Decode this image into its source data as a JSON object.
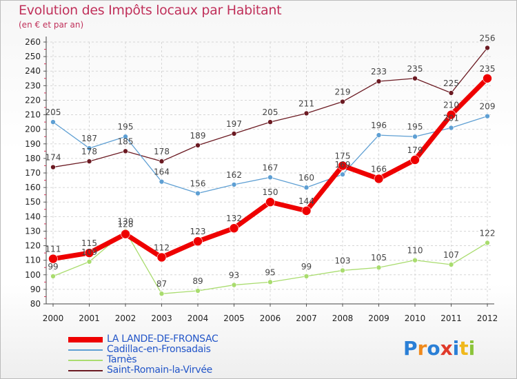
{
  "title": "Evolution des Impôts locaux par Habitant",
  "subtitle": "(en € et par an)",
  "brand": {
    "letters": [
      "P",
      "r",
      "o",
      "x",
      "i",
      "t",
      "i"
    ],
    "colors": [
      "#2a7fd6",
      "#f08a1c",
      "#2a7fd6",
      "#e03a2a",
      "#2a7fd6",
      "#f0b81c",
      "#8bc43a"
    ]
  },
  "chart_data": {
    "type": "line",
    "title": "Evolution des Impôts locaux par Habitant",
    "subtitle": "(en € et par an)",
    "xlabel": "",
    "ylabel": "",
    "x": [
      "2000",
      "2001",
      "2002",
      "2003",
      "2004",
      "2005",
      "2006",
      "2007",
      "2008",
      "2009",
      "2010",
      "2011",
      "2012"
    ],
    "ylim": [
      80,
      260
    ],
    "yticks": [
      80,
      90,
      100,
      110,
      120,
      130,
      140,
      150,
      160,
      170,
      180,
      190,
      200,
      210,
      220,
      230,
      240,
      250,
      260
    ],
    "grid": true,
    "legend_position": "bottom-left",
    "series": [
      {
        "name": "Saint-Romain-la-Virvée",
        "color": "#6b1a22",
        "width": 1.3,
        "marker": 3.5,
        "values": [
          174,
          178,
          185,
          178,
          189,
          197,
          205,
          211,
          219,
          233,
          235,
          225,
          256
        ]
      },
      {
        "name": "Cadillac-en-Fronsadais",
        "color": "#5e9fd3",
        "width": 1.3,
        "marker": 3.5,
        "values": [
          205,
          187,
          195,
          164,
          156,
          162,
          167,
          160,
          169,
          196,
          195,
          201,
          209
        ]
      },
      {
        "name": "Tarnès",
        "color": "#a9dc6e",
        "width": 1.3,
        "marker": 3.5,
        "values": [
          99,
          109,
          130,
          87,
          89,
          93,
          95,
          99,
          103,
          105,
          110,
          107,
          122
        ]
      },
      {
        "name": "LA LANDE-DE-FRONSAC",
        "color": "#ee0000",
        "width": 7,
        "marker": 6.5,
        "values": [
          111,
          115,
          128,
          112,
          123,
          132,
          150,
          144,
          175,
          166,
          179,
          210,
          235
        ]
      }
    ],
    "legend_order": [
      "LA LANDE-DE-FRONSAC",
      "Cadillac-en-Fronsadais",
      "Tarnès",
      "Saint-Romain-la-Virvée"
    ]
  }
}
